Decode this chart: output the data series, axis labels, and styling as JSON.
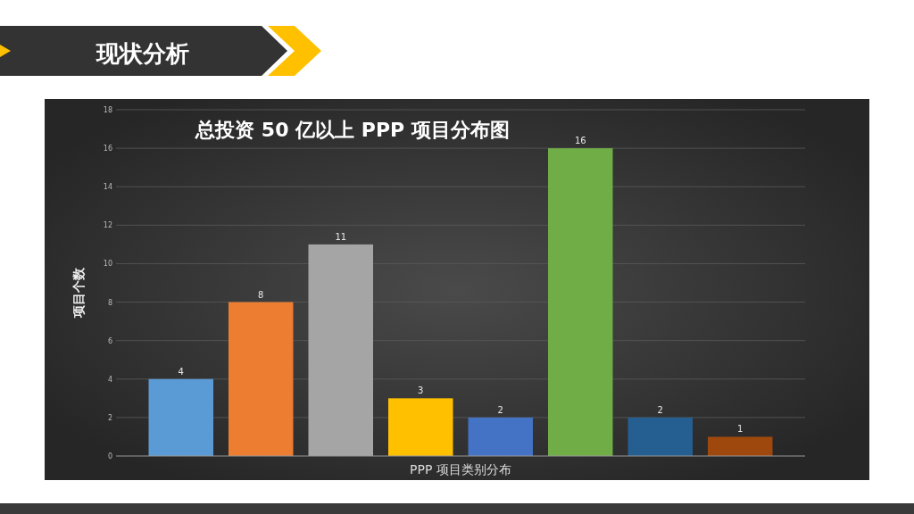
{
  "chart_data": {
    "type": "bar",
    "title": "总投资 50 亿以上 PPP 项目分布图",
    "xlabel": "PPP 项目类别分布",
    "ylabel": "项目个数",
    "annotations": [
      "现状分析"
    ],
    "categories": [
      null,
      null,
      null,
      null,
      null,
      null,
      null,
      null
    ],
    "values": [
      4,
      8,
      11,
      3,
      2,
      16,
      2,
      1
    ],
    "colors": [
      "#5b9bd5",
      "#ed7d31",
      "#a5a5a5",
      "#ffc000",
      "#4472c4",
      "#70ad47",
      "#255e91",
      "#9e480e"
    ],
    "ylim": [
      0,
      18
    ],
    "yticks": [
      0,
      2,
      4,
      6,
      8,
      10,
      12,
      14,
      16,
      18
    ],
    "grid": "y",
    "data_labels": true
  }
}
